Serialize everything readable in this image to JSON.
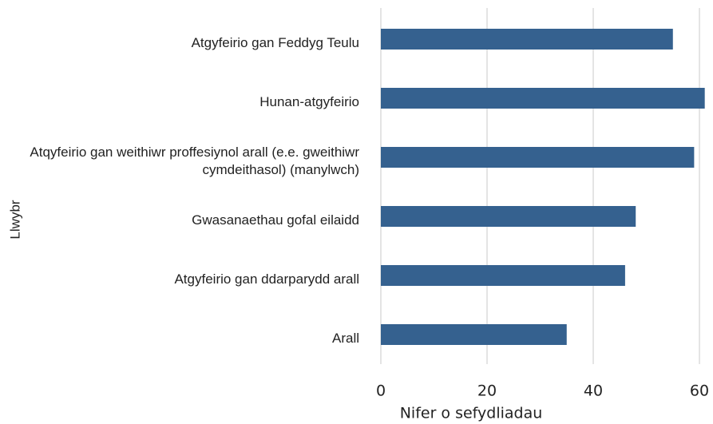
{
  "chart_data": {
    "type": "bar",
    "orientation": "horizontal",
    "categories": [
      "Atgyfeirio gan Feddyg Teulu",
      "Hunan-atgyfeirio",
      "Atqyfeirio gan weithiwr proffesiynol arall (e.e. gweithiwr cymdeithasol) (manylwch)",
      "Gwasanaethau gofal eilaidd",
      "Atgyfeirio gan ddarparydd arall",
      "Arall"
    ],
    "values": [
      55,
      61,
      59,
      48,
      46,
      35
    ],
    "color": "#35618f",
    "xlim": [
      0,
      61.5
    ],
    "xticks": [
      0,
      20,
      40,
      60
    ],
    "grid": true,
    "x_label": "Nifer o sefydliadau",
    "y_label": "Llwybr"
  }
}
